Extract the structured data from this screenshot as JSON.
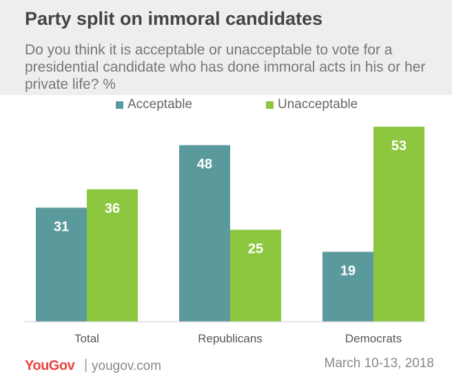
{
  "chart_data": {
    "type": "bar",
    "title": "Party split on immoral candidates",
    "subtitle": "Do you think it is acceptable or unacceptable to vote for a presidential candidate who has done immoral acts in his or her private life? %",
    "categories": [
      "Total",
      "Republicans",
      "Democrats"
    ],
    "series": [
      {
        "name": "Acceptable",
        "values": [
          31,
          48,
          19
        ],
        "color": "#5b9a9c"
      },
      {
        "name": "Unacceptable",
        "values": [
          36,
          25,
          53
        ],
        "color": "#8dc63f"
      }
    ],
    "ylim": [
      0,
      53
    ],
    "grid": false,
    "legend_position": "top-center"
  },
  "footer": {
    "brand": "YouGov",
    "separator": "|",
    "site": "yougov.com",
    "date": "March 10-13, 2018"
  }
}
